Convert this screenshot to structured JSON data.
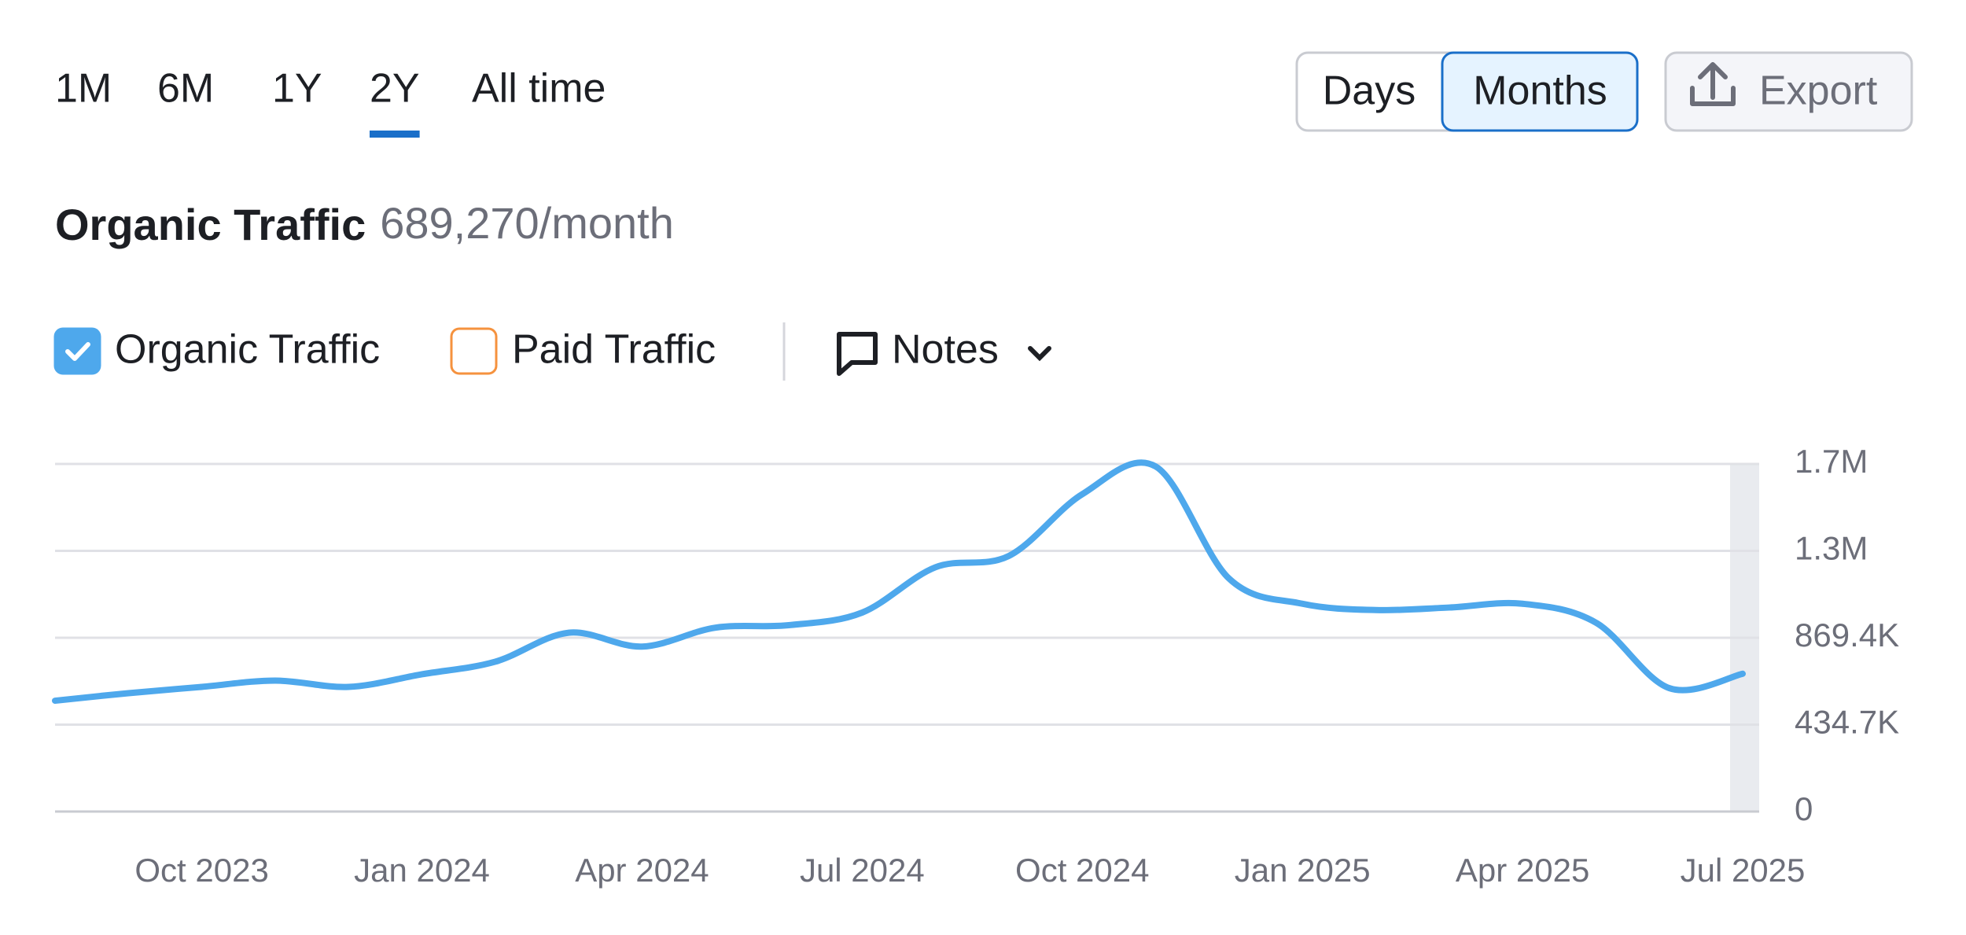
{
  "ui": {
    "ranges": [
      "1M",
      "6M",
      "1Y",
      "2Y",
      "All time"
    ],
    "active_range": 3,
    "granularity": [
      "Days",
      "Months"
    ],
    "active_granularity": 1,
    "export": "Export",
    "notes": "Notes"
  },
  "chart_data": {
    "type": "line",
    "title": "Organic Traffic",
    "subtitle": "689,270/month",
    "categories": [
      null,
      null,
      "Oct 2023",
      null,
      null,
      "Jan 2024",
      null,
      null,
      "Apr 2024",
      null,
      null,
      "Jul 2024",
      null,
      null,
      "Oct 2024",
      null,
      null,
      "Jan 2025",
      null,
      null,
      "Apr 2025",
      null,
      null,
      "Jul 2025"
    ],
    "series": [
      {
        "name": "Organic Traffic",
        "color": "#4ea8ec",
        "checked": true,
        "values": [
          554400,
          592200,
          623700,
          655200,
          623700,
          686700,
          749700,
          894600,
          825300,
          919800,
          932400,
          995400,
          1222200,
          1278900,
          1587600,
          1726200,
          1165500,
          1039500,
          1008000,
          1020600,
          1039500,
          945000,
          617400,
          689270
        ]
      },
      {
        "name": "Paid Traffic",
        "color": "#f5923e",
        "checked": false
      }
    ],
    "ylim": [
      0,
      1738800
    ],
    "yticks": [
      0,
      {
        "value": 434700,
        "label": "434.7K"
      },
      {
        "value": 869400,
        "label": "869.4K"
      },
      {
        "value": 1304100,
        "label": "1.3M"
      },
      {
        "value": 1738800,
        "label": "1.7M"
      }
    ],
    "grid": true
  }
}
